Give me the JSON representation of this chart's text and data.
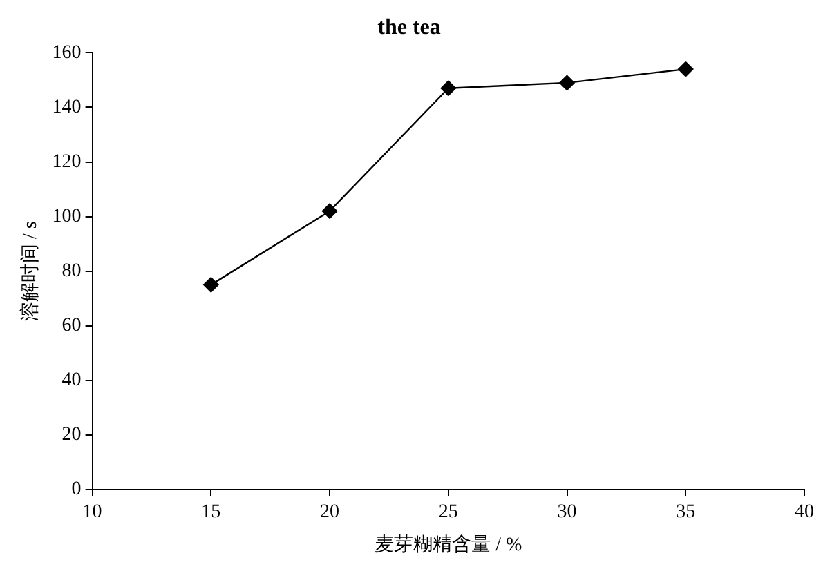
{
  "chart_data": {
    "type": "line",
    "title": "the tea",
    "xlabel": "麦芽糊精含量 / %",
    "ylabel": "溶解时间 / s",
    "x": [
      15,
      20,
      25,
      30,
      35
    ],
    "series": [
      {
        "color": "#000000",
        "values": [
          75,
          102,
          147,
          149,
          154
        ]
      }
    ],
    "xlim": [
      10,
      40
    ],
    "xticks": [
      10,
      15,
      20,
      25,
      30,
      35,
      40
    ],
    "ylim": [
      0,
      160
    ],
    "yticks": [
      0,
      20,
      40,
      60,
      80,
      100,
      120,
      140,
      160
    ],
    "grid": false,
    "legend": false,
    "marker": "diamond",
    "line_style": "solid"
  }
}
